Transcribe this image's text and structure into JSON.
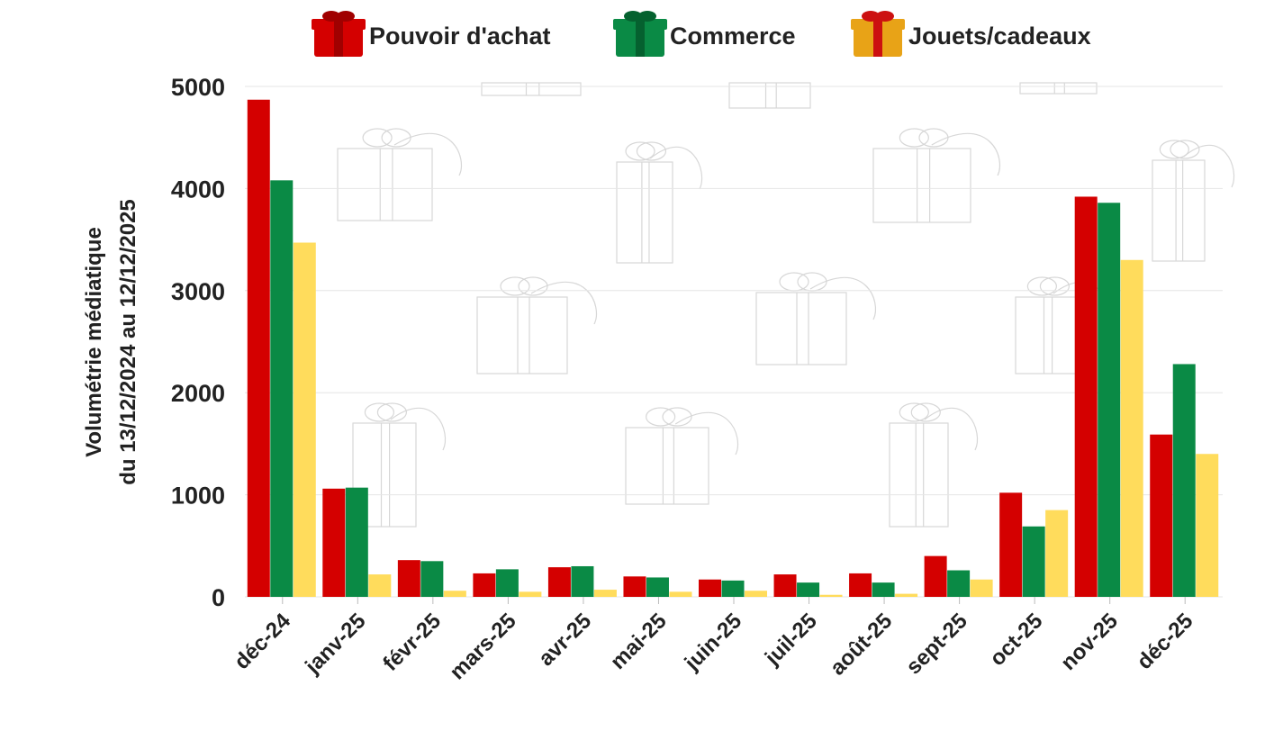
{
  "colors": {
    "pouvoir": "#d40000",
    "commerce": "#0a8a45",
    "jouets": "#ffdc5c",
    "text": "#222222",
    "grid": "#e6e6e6"
  },
  "legend": [
    {
      "label": "Pouvoir d'achat",
      "icon": "gift-red-icon"
    },
    {
      "label": "Commerce",
      "icon": "gift-green-icon"
    },
    {
      "label": "Jouets/cadeaux",
      "icon": "gift-gold-icon"
    }
  ],
  "chart_data": {
    "type": "bar",
    "ylabel_line1": "Volumétrie médiatique",
    "ylabel_line2": "du 13/12/2024 au 12/12/2025",
    "xlabel": "",
    "ylim": [
      0,
      5000
    ],
    "yticks": [
      0,
      1000,
      2000,
      3000,
      4000,
      5000
    ],
    "grid": true,
    "legend_position": "top",
    "categories": [
      "déc-24",
      "janv-25",
      "févr-25",
      "mars-25",
      "avr-25",
      "mai-25",
      "juin-25",
      "juil-25",
      "août-25",
      "sept-25",
      "oct-25",
      "nov-25",
      "déc-25"
    ],
    "series": [
      {
        "name": "Pouvoir d'achat",
        "color": "#d40000",
        "values": [
          4870,
          1060,
          360,
          230,
          290,
          200,
          170,
          220,
          230,
          400,
          1020,
          3920,
          1590
        ]
      },
      {
        "name": "Commerce",
        "color": "#0a8a45",
        "values": [
          4080,
          1070,
          350,
          270,
          300,
          190,
          160,
          140,
          140,
          260,
          690,
          3860,
          2280
        ]
      },
      {
        "name": "Jouets/cadeaux",
        "color": "#ffdc5c",
        "values": [
          3470,
          220,
          60,
          50,
          70,
          50,
          60,
          20,
          30,
          170,
          850,
          3300,
          1400
        ]
      }
    ]
  }
}
